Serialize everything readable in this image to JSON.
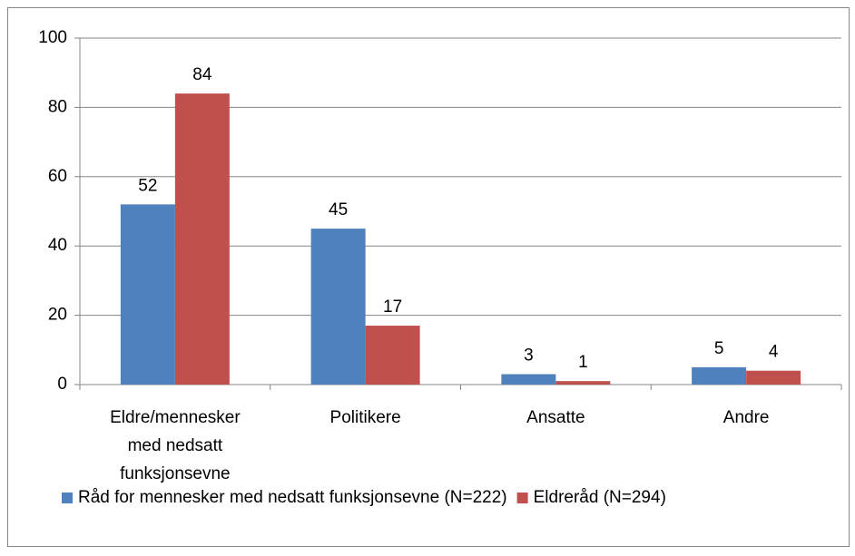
{
  "chart_data": {
    "type": "bar",
    "categories": [
      "Eldre/mennesker med nedsatt funksjonsevne",
      "Politikere",
      "Ansatte",
      "Andre"
    ],
    "series": [
      {
        "name": "Råd for mennesker med nedsatt funksjonsevne (N=222)",
        "color": "#4f81bd",
        "values": [
          52,
          45,
          3,
          5
        ]
      },
      {
        "name": "Eldreråd (N=294)",
        "color": "#c0504d",
        "values": [
          84,
          17,
          1,
          4
        ]
      }
    ],
    "ylim": [
      0,
      100
    ],
    "yticks": [
      0,
      20,
      40,
      60,
      80,
      100
    ],
    "grid": true,
    "legend": "bottom"
  }
}
